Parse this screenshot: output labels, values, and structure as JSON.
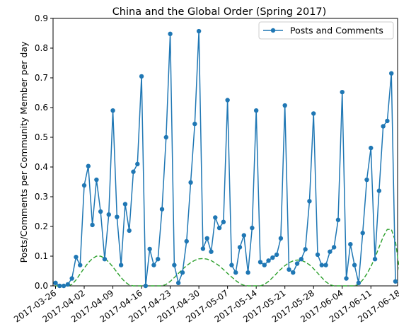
{
  "chart_data": {
    "type": "line",
    "title": "China and the Global Order (Spring 2017)",
    "xlabel": "",
    "ylabel": "Posts/Comments per Community Member per day",
    "ylim": [
      0,
      0.9
    ],
    "yticks": [
      "0.0",
      "0.1",
      "0.2",
      "0.3",
      "0.4",
      "0.5",
      "0.6",
      "0.7",
      "0.8",
      "0.9"
    ],
    "xticks": [
      "2017-03-26",
      "2017-04-02",
      "2017-04-09",
      "2017-04-16",
      "2017-04-23",
      "2017-04-30",
      "2017-05-07",
      "2017-05-14",
      "2017-05-21",
      "2017-05-28",
      "2017-06-04",
      "2017-06-11",
      "2017-06-18"
    ],
    "legend_position": "top-right",
    "grid": false,
    "series": [
      {
        "name": "Posts and Comments",
        "style": "solid line with circle markers",
        "color": "#1f77b4",
        "values": [
          0.01,
          0.0,
          0.0,
          0.005,
          0.025,
          0.097,
          0.07,
          0.338,
          0.403,
          0.205,
          0.357,
          0.25,
          0.09,
          0.24,
          0.59,
          0.232,
          0.07,
          0.275,
          0.186,
          0.384,
          0.41,
          0.705,
          0.0,
          0.124,
          0.07,
          0.09,
          0.258,
          0.5,
          0.848,
          0.07,
          0.01,
          0.045,
          0.15,
          0.348,
          0.545,
          0.857,
          0.125,
          0.16,
          0.115,
          0.23,
          0.195,
          0.215,
          0.625,
          0.07,
          0.045,
          0.13,
          0.17,
          0.045,
          0.195,
          0.59,
          0.08,
          0.07,
          0.085,
          0.095,
          0.105,
          0.16,
          0.607,
          0.055,
          0.045,
          0.075,
          0.09,
          0.123,
          0.285,
          0.58,
          0.105,
          0.07,
          0.07,
          0.115,
          0.13,
          0.222,
          0.652,
          0.025,
          0.14,
          0.07,
          0.01,
          0.178,
          0.357,
          0.464,
          0.09,
          0.32,
          0.537,
          0.555,
          0.715,
          0.015
        ]
      },
      {
        "name": "",
        "style": "dashed smooth trend",
        "color": "#2ca02c",
        "values": [
          0.0,
          0.0,
          0.0,
          0.0,
          0.005,
          0.02,
          0.04,
          0.06,
          0.078,
          0.092,
          0.1,
          0.1,
          0.093,
          0.08,
          0.064,
          0.046,
          0.028,
          0.013,
          0.003,
          0.0,
          0.0,
          0.0,
          0.0,
          0.0,
          0.0,
          0.0,
          0.0,
          0.005,
          0.015,
          0.028,
          0.042,
          0.056,
          0.068,
          0.078,
          0.086,
          0.091,
          0.092,
          0.09,
          0.085,
          0.077,
          0.067,
          0.055,
          0.042,
          0.03,
          0.018,
          0.008,
          0.002,
          0.0,
          0.0,
          0.0,
          0.0,
          0.005,
          0.015,
          0.028,
          0.042,
          0.056,
          0.068,
          0.078,
          0.084,
          0.087,
          0.086,
          0.08,
          0.071,
          0.058,
          0.043,
          0.028,
          0.014,
          0.004,
          0.0,
          0.0,
          0.0,
          0.0,
          0.0,
          0.0,
          0.005,
          0.02,
          0.04,
          0.065,
          0.095,
          0.13,
          0.165,
          0.19,
          0.19,
          0.15,
          0.05,
          0.0
        ]
      }
    ]
  }
}
